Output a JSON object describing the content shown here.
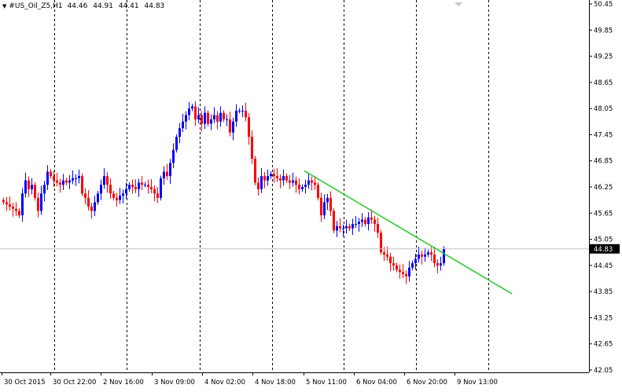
{
  "header": {
    "symbol": "#US_Oil_Z5,H1",
    "open": "44.46",
    "high": "44.91",
    "low": "44.41",
    "close": "44.83",
    "collapse_icon": "triangle-down-icon"
  },
  "chart_data": {
    "type": "candlestick",
    "symbol": "#US_Oil_Z5",
    "timeframe": "H1",
    "price_axis": {
      "ylim": [
        42.05,
        50.45
      ],
      "ticks": [
        "50.45",
        "49.85",
        "49.25",
        "48.65",
        "48.05",
        "47.45",
        "46.85",
        "46.25",
        "45.65",
        "45.05",
        "44.45",
        "43.85",
        "43.25",
        "42.65",
        "42.05"
      ]
    },
    "current_price": "44.83",
    "time_axis_labels": [
      "30 Oct 2015",
      "30 Oct 22:00",
      "2 Nov 16:00",
      "3 Nov 09:00",
      "4 Nov 02:00",
      "4 Nov 18:00",
      "5 Nov 11:00",
      "6 Nov 04:00",
      "6 Nov 20:00",
      "9 Nov 13:00"
    ],
    "grid": "vertical-dashed",
    "colors": {
      "bull": "#0000ff",
      "bear": "#ff0000",
      "trendline": "#33cc33",
      "bid_line": "#c0c0c0"
    },
    "trendline": {
      "from": {
        "bar": 96,
        "price": 46.62
      },
      "to": {
        "bar": 162,
        "price": 43.8
      }
    },
    "closes": [
      45.9,
      45.85,
      45.8,
      45.75,
      45.7,
      45.6,
      46.1,
      46.4,
      46.2,
      46.3,
      46.0,
      45.7,
      46.1,
      46.3,
      46.6,
      46.5,
      46.4,
      46.35,
      46.3,
      46.4,
      46.35,
      46.4,
      46.45,
      46.45,
      46.5,
      46.1,
      46.0,
      45.8,
      45.7,
      45.9,
      46.1,
      46.3,
      46.5,
      46.3,
      46.1,
      46.0,
      45.95,
      46.05,
      46.1,
      46.2,
      46.3,
      46.25,
      46.2,
      46.35,
      46.3,
      46.3,
      46.25,
      46.2,
      46.1,
      46.0,
      46.45,
      46.6,
      46.5,
      46.8,
      47.1,
      47.4,
      47.6,
      47.75,
      47.9,
      48.05,
      48.1,
      47.8,
      47.9,
      47.7,
      47.95,
      47.7,
      47.8,
      47.9,
      47.75,
      47.95,
      47.8,
      47.8,
      47.5,
      47.75,
      48.0,
      48.0,
      48.0,
      47.85,
      47.4,
      46.9,
      46.35,
      46.2,
      46.5,
      46.4,
      46.5,
      46.55,
      46.5,
      46.45,
      46.4,
      46.5,
      46.4,
      46.35,
      46.4,
      46.3,
      46.2,
      46.25,
      46.3,
      46.4,
      46.35,
      46.3,
      46.0,
      45.6,
      45.9,
      46.0,
      45.7,
      45.25,
      45.35,
      45.3,
      45.3,
      45.35,
      45.3,
      45.4,
      45.4,
      45.45,
      45.5,
      45.4,
      45.55,
      45.5,
      45.4,
      45.2,
      44.75,
      44.7,
      44.65,
      44.5,
      44.45,
      44.35,
      44.3,
      44.25,
      44.2,
      44.4,
      44.5,
      44.6,
      44.7,
      44.65,
      44.7,
      44.75,
      44.7,
      44.5,
      44.45,
      44.5,
      44.83
    ]
  }
}
